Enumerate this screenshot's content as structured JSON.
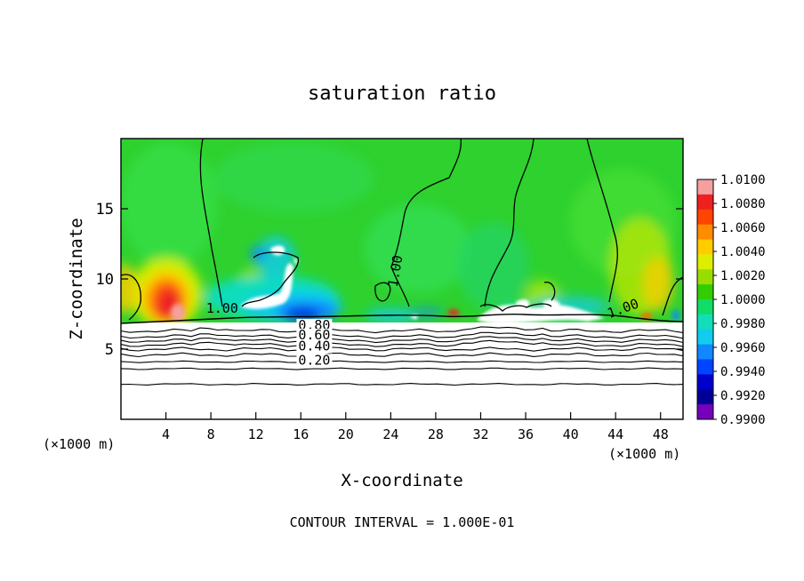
{
  "chart_data": {
    "type": "heatmap",
    "title": "saturation ratio",
    "xlabel": "X-coordinate",
    "ylabel": "Z-coordinate",
    "x_unit_left": "(×1000 m)",
    "x_unit_right": "(×1000 m)",
    "xlim": [
      0,
      50
    ],
    "ylim": [
      0,
      20
    ],
    "x_ticks": [
      4,
      8,
      12,
      16,
      20,
      24,
      28,
      32,
      36,
      40,
      44,
      48
    ],
    "y_ticks": [
      5,
      10,
      15
    ],
    "footer": "CONTOUR INTERVAL = 1.000E-01",
    "colorbar": {
      "min": 0.99,
      "max": 1.01,
      "labels": [
        "1.0100",
        "1.0080",
        "1.0060",
        "1.0040",
        "1.0020",
        "1.0000",
        "0.9980",
        "0.9960",
        "0.9940",
        "0.9920",
        "0.9900"
      ],
      "colors": [
        "#f5a0a0",
        "#ee2020",
        "#ff4400",
        "#ff8c00",
        "#ffcc00",
        "#ddee00",
        "#99dd00",
        "#33cc00",
        "#11dd66",
        "#11ddbb",
        "#11ccee",
        "#1188ff",
        "#0044ff",
        "#0000cc",
        "#000099",
        "#7700bb"
      ]
    },
    "contour_labels": [
      {
        "text": "1.00",
        "x": 9.0,
        "z": 7.6
      },
      {
        "text": "1.00",
        "x": 24.8,
        "z": 10.5
      },
      {
        "text": "1.00",
        "x": 44.8,
        "z": 7.6
      },
      {
        "text": "0.80",
        "x": 17.2,
        "z": 6.4
      },
      {
        "text": "0.60",
        "x": 17.2,
        "z": 5.7
      },
      {
        "text": "0.40",
        "x": 17.2,
        "z": 4.9
      },
      {
        "text": "0.20",
        "x": 17.2,
        "z": 3.9
      }
    ],
    "saturation_contours": [
      {
        "level": 0.9,
        "z": 6.3
      },
      {
        "level": 0.8,
        "z": 5.9
      },
      {
        "level": 0.7,
        "z": 5.6
      },
      {
        "level": 0.6,
        "z": 5.3
      },
      {
        "level": 0.5,
        "z": 5.0
      },
      {
        "level": 0.4,
        "z": 4.6
      },
      {
        "level": 0.3,
        "z": 4.1
      },
      {
        "level": 0.2,
        "z": 3.6
      },
      {
        "level": 0.1,
        "z": 2.5
      }
    ]
  }
}
